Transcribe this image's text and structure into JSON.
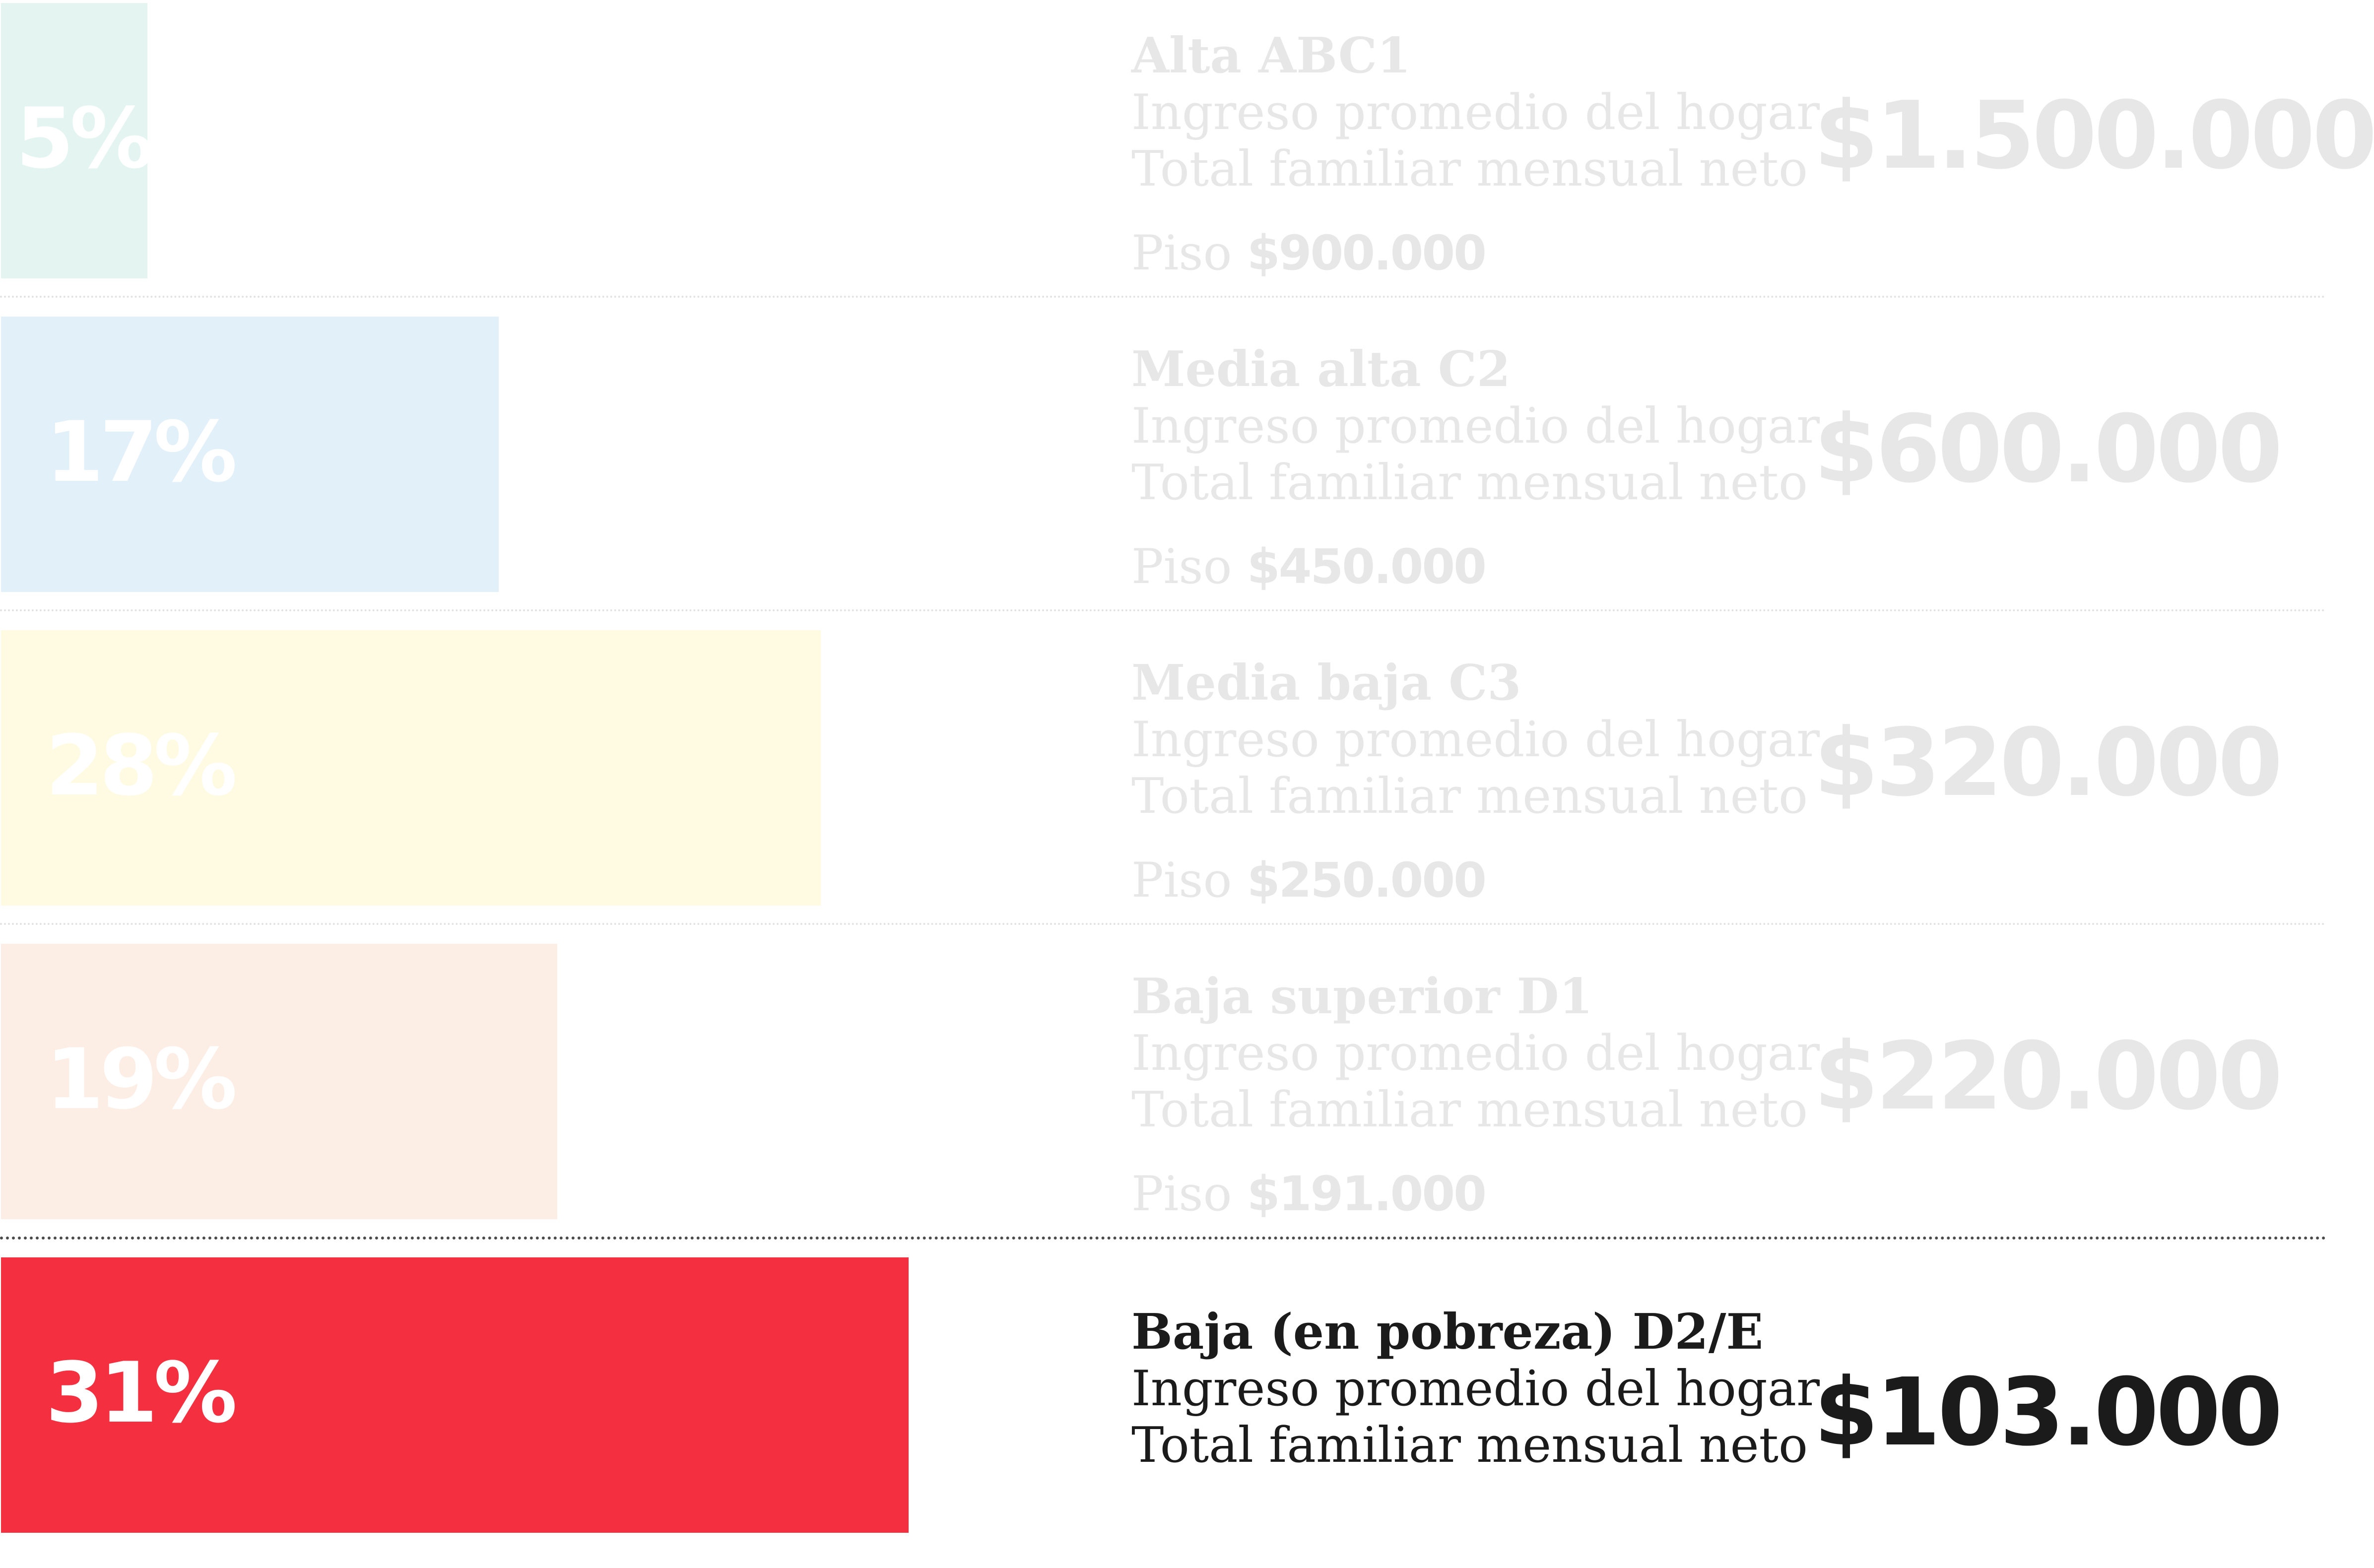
{
  "chart_data": {
    "type": "bar",
    "orientation": "horizontal",
    "title": "",
    "xlabel": "",
    "ylabel": "",
    "xlim": [
      0,
      31
    ],
    "grid": false,
    "legend": "none",
    "categories": [
      "Alta ABC1",
      "Media alta C2",
      "Media baja C3",
      "Baja superior D1",
      "Baja (en pobreza) D2/E"
    ],
    "values": [
      5,
      17,
      28,
      19,
      31
    ],
    "value_labels": [
      "5%",
      "17%",
      "28%",
      "19%",
      "31%"
    ],
    "income_caption_line1": "Ingreso promedio del hogar",
    "income_caption_line2": "Total familiar mensual neto",
    "income_values": [
      "$1.500.000",
      "$600.000",
      "$320.000",
      "$220.000",
      "$103.000"
    ],
    "floor_prefix": "Piso",
    "floor_values": [
      "$900.000",
      "$450.000",
      "$250.000",
      "$191.000",
      null
    ],
    "highlighted_category": "Baja (en pobreza) D2/E",
    "colors": [
      "#e4f5f1",
      "#e2f0f9",
      "#fffbe3",
      "#fdeee5",
      "#f42f3f"
    ],
    "faded_text_color": "#e7e7e7",
    "active_text_color": "#1b1b1b",
    "bar_label_color": "#ffffff"
  }
}
